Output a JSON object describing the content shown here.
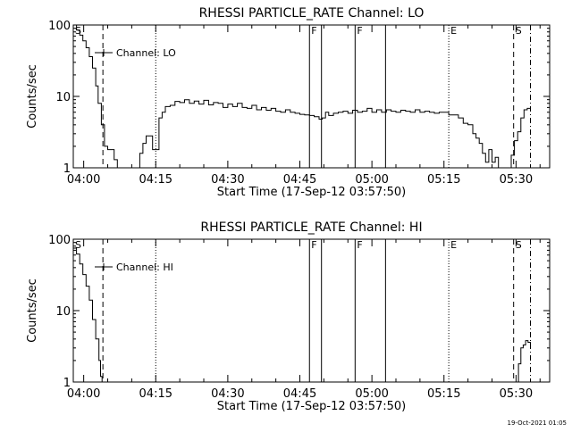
{
  "footer_timestamp": "19-Oct-2021 01:05",
  "chart_data": [
    {
      "type": "line",
      "title": "RHESSI PARTICLE_RATE Channel: LO",
      "xlabel": "Start Time (17-Sep-12 03:57:50)",
      "ylabel": "Counts/sec",
      "yscale": "log",
      "ylim": [
        1,
        100
      ],
      "y_ticks": [
        1,
        10,
        100
      ],
      "y_tick_labels": [
        "1",
        "10",
        "100"
      ],
      "xlim": [
        "03:57:50",
        "05:37:00"
      ],
      "x_ticks": [
        "04:00",
        "04:15",
        "04:30",
        "04:45",
        "05:00",
        "05:15",
        "05:30"
      ],
      "x_tick_labels": [
        "04:00",
        "04:15",
        "04:30",
        "04:45",
        "05:00",
        "05:15",
        "05:30"
      ],
      "legend": {
        "label": "Channel: LO",
        "position": "top-left"
      },
      "markers": [
        {
          "time": "03:57:50",
          "label": "S",
          "style": "solid"
        },
        {
          "time": "04:04:00",
          "label": "",
          "style": "dashed"
        },
        {
          "time": "04:15:00",
          "label": "",
          "style": "dotted"
        },
        {
          "time": "04:47:00",
          "label": "F",
          "style": "solid"
        },
        {
          "time": "04:49:30",
          "label": "",
          "style": "solid"
        },
        {
          "time": "04:56:30",
          "label": "F",
          "style": "solid"
        },
        {
          "time": "05:02:50",
          "label": "",
          "style": "solid"
        },
        {
          "time": "05:16:00",
          "label": "E",
          "style": "dotted"
        },
        {
          "time": "05:29:30",
          "label": "S",
          "style": "dashed"
        },
        {
          "time": "05:33:00",
          "label": "",
          "style": "dashdot"
        }
      ],
      "series": [
        {
          "x": [
            "03:57:50",
            "03:58:30",
            "03:59:10",
            "03:59:50",
            "04:00:30",
            "04:01:10",
            "04:01:50",
            "04:02:30",
            "04:03:00",
            "04:03:40",
            "04:04:20",
            "04:05:00",
            "04:05:40",
            "04:06:20",
            "04:07:00",
            "04:08:00",
            "04:09:00",
            "04:10:00",
            "04:11:00",
            "04:11:40",
            "04:12:20",
            "04:13:00",
            "04:13:40",
            "04:14:20",
            "04:15:00",
            "04:15:40",
            "04:16:20",
            "04:17:00",
            "04:18:00",
            "04:19:00",
            "04:20:00",
            "04:21:00",
            "04:22:00",
            "04:23:00",
            "04:24:00",
            "04:25:00",
            "04:26:00",
            "04:27:00",
            "04:28:00",
            "04:29:00",
            "04:30:00",
            "04:31:00",
            "04:32:00",
            "04:33:00",
            "04:34:00",
            "04:35:00",
            "04:36:00",
            "04:37:00",
            "04:38:00",
            "04:39:00",
            "04:40:00",
            "04:41:00",
            "04:42:00",
            "04:43:00",
            "04:44:00",
            "04:45:00",
            "04:46:00",
            "04:47:00",
            "04:48:00",
            "04:49:00",
            "04:49:40",
            "04:50:20",
            "04:51:00",
            "04:52:00",
            "04:53:00",
            "04:54:00",
            "04:55:00",
            "04:56:00",
            "04:57:00",
            "04:58:00",
            "04:59:00",
            "05:00:00",
            "05:01:00",
            "05:02:00",
            "05:03:00",
            "05:04:00",
            "05:05:00",
            "05:06:00",
            "05:07:00",
            "05:08:00",
            "05:09:00",
            "05:10:00",
            "05:11:00",
            "05:12:00",
            "05:13:00",
            "05:14:00",
            "05:15:00",
            "05:16:00",
            "05:17:00",
            "05:18:00",
            "05:19:00",
            "05:20:00",
            "05:21:00",
            "05:21:40",
            "05:22:20",
            "05:23:00",
            "05:23:40",
            "05:24:20",
            "05:25:00",
            "05:25:40",
            "05:26:20",
            "05:27:00",
            "05:27:40",
            "05:28:20",
            "05:29:00",
            "05:29:40",
            "05:30:20",
            "05:31:00",
            "05:31:40",
            "05:32:20",
            "05:33:00"
          ],
          "values": [
            100,
            85,
            72,
            60,
            48,
            36,
            25,
            14,
            8,
            4,
            2,
            1.8,
            1.8,
            1.3,
            0.9,
            0.9,
            0.9,
            0.9,
            0.9,
            1.6,
            2.2,
            2.8,
            2.8,
            1.8,
            1.8,
            5.0,
            6.0,
            7.2,
            7.5,
            8.5,
            8.2,
            9.0,
            8.0,
            8.6,
            7.8,
            8.8,
            7.6,
            8.2,
            8.0,
            7.0,
            7.8,
            7.2,
            8.0,
            7.0,
            6.8,
            7.5,
            6.5,
            7.0,
            6.4,
            6.8,
            6.2,
            6.0,
            6.5,
            6.0,
            5.8,
            5.6,
            5.5,
            5.4,
            5.2,
            4.8,
            5.0,
            6.0,
            5.4,
            5.8,
            6.0,
            6.2,
            5.8,
            6.4,
            6.0,
            6.2,
            6.8,
            6.0,
            6.5,
            6.0,
            6.5,
            6.2,
            6.0,
            6.4,
            6.2,
            6.0,
            6.5,
            6.0,
            6.2,
            6.0,
            5.8,
            6.0,
            6.0,
            5.5,
            5.5,
            5.0,
            4.2,
            4.0,
            3.0,
            2.6,
            2.2,
            1.6,
            1.2,
            1.8,
            1.2,
            1.4,
            0.9,
            0.9,
            0.9,
            0.9,
            1.5,
            2.4,
            3.2,
            5.0,
            6.5,
            6.8,
            6.8
          ]
        }
      ]
    },
    {
      "type": "line",
      "title": "RHESSI PARTICLE_RATE Channel: HI",
      "xlabel": "Start Time (17-Sep-12 03:57:50)",
      "ylabel": "Counts/sec",
      "yscale": "log",
      "ylim": [
        1,
        100
      ],
      "y_ticks": [
        1,
        10,
        100
      ],
      "y_tick_labels": [
        "1",
        "10",
        "100"
      ],
      "xlim": [
        "03:57:50",
        "05:37:00"
      ],
      "x_ticks": [
        "04:00",
        "04:15",
        "04:30",
        "04:45",
        "05:00",
        "05:15",
        "05:30"
      ],
      "x_tick_labels": [
        "04:00",
        "04:15",
        "04:30",
        "04:45",
        "05:00",
        "05:15",
        "05:30"
      ],
      "legend": {
        "label": "Channel: HI",
        "position": "top-left"
      },
      "markers": [
        {
          "time": "03:57:50",
          "label": "S",
          "style": "solid"
        },
        {
          "time": "04:04:00",
          "label": "",
          "style": "dashed"
        },
        {
          "time": "04:15:00",
          "label": "",
          "style": "dotted"
        },
        {
          "time": "04:47:00",
          "label": "F",
          "style": "solid"
        },
        {
          "time": "04:49:30",
          "label": "",
          "style": "solid"
        },
        {
          "time": "04:56:30",
          "label": "F",
          "style": "solid"
        },
        {
          "time": "05:02:50",
          "label": "",
          "style": "solid"
        },
        {
          "time": "05:16:00",
          "label": "E",
          "style": "dotted"
        },
        {
          "time": "05:29:30",
          "label": "S",
          "style": "dashed"
        },
        {
          "time": "05:33:00",
          "label": "",
          "style": "dashdot"
        }
      ],
      "series": [
        {
          "x": [
            "03:57:50",
            "03:58:30",
            "03:59:10",
            "03:59:50",
            "04:00:30",
            "04:01:10",
            "04:01:50",
            "04:02:30",
            "04:03:10",
            "04:03:30",
            "04:03:50",
            "05:30:00",
            "05:30:30",
            "05:31:00",
            "05:31:30",
            "05:32:00",
            "05:32:30",
            "05:33:00"
          ],
          "values": [
            75,
            62,
            45,
            32,
            22,
            14,
            7.5,
            4.0,
            2.0,
            1.2,
            0.9,
            0.9,
            1.8,
            3.0,
            3.3,
            3.8,
            3.6,
            3.0
          ]
        }
      ]
    }
  ]
}
